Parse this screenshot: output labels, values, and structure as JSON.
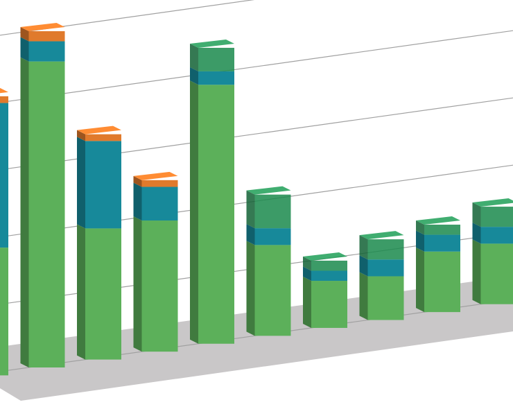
{
  "chart_data": {
    "type": "bar3d_stacked",
    "categories": [
      null,
      null,
      null,
      null,
      null,
      null,
      null,
      null,
      null,
      null
    ],
    "series": [
      {
        "color": "#5cb05a",
        "values": [
          1.9,
          4.55,
          1.95,
          1.95,
          3.85,
          1.35,
          0.7,
          0.65,
          0.9,
          0.9
        ]
      },
      {
        "color": "#17899a",
        "values": [
          2.15,
          0.3,
          1.3,
          0.5,
          0.2,
          0.25,
          0.15,
          0.25,
          0.25,
          0.25
        ]
      },
      {
        "color": "#e07a2c",
        "values": [
          0.1,
          0.15,
          0.1,
          0.1,
          0,
          0,
          0,
          0,
          0,
          0
        ]
      },
      {
        "color": "#1a8a4c",
        "values": [
          0,
          0,
          0,
          0,
          0.35,
          0.5,
          0.15,
          0.3,
          0.15,
          0.3
        ]
      }
    ],
    "ylim": [
      0,
      5
    ],
    "yticks": [
      0,
      1,
      2,
      3,
      4,
      5
    ],
    "grid": true
  }
}
